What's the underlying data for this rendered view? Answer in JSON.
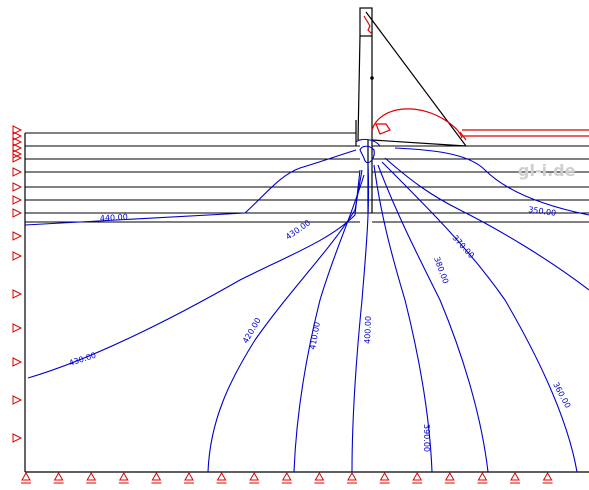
{
  "watermark": "gl-i.de",
  "contour_labels": [
    "440.00",
    "430.00",
    "430.00",
    "420.00",
    "410.00",
    "400.00",
    "390.00",
    "380.00",
    "370.00",
    "360.00",
    "350.00"
  ],
  "colors": {
    "contour": "#0000cc",
    "structure": "#000000",
    "phreatic": "#dd0000",
    "boundary_symbol": "#dd0000"
  },
  "icons": {
    "left_boundary": "triangle-right-support-icon",
    "bottom_boundary": "triangle-up-support-icon"
  }
}
